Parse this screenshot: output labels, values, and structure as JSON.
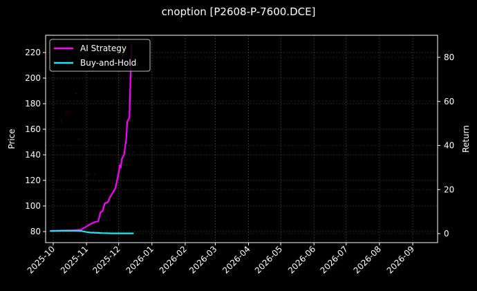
{
  "chart_data": {
    "type": "line",
    "title": "cnoption [P2608-P-7600.DCE]",
    "xlabel": "",
    "ylabel": "Price",
    "ylabel_right": "Return",
    "x_tick_labels": [
      "2025-10",
      "2025-11",
      "2025-12",
      "2026-01",
      "2026-02",
      "2026-03",
      "2026-04",
      "2026-05",
      "2026-06",
      "2026-07",
      "2026-08",
      "2026-09"
    ],
    "y_ticks_left": [
      80,
      100,
      120,
      140,
      160,
      180,
      200,
      220
    ],
    "y_ticks_right": [
      0,
      20,
      40,
      60,
      80
    ],
    "ylim_left": [
      74,
      234
    ],
    "ylim_right": [
      -3.5,
      90
    ],
    "grid": true,
    "legend_position": "upper left",
    "legend": [
      "AI Strategy",
      "Buy-and-Hold"
    ],
    "series": [
      {
        "name": "AI Strategy",
        "color": "#ff00ff",
        "axis": "left",
        "points": [
          [
            "2025-09-28",
            80.6
          ],
          [
            "2025-10-10",
            80.8
          ],
          [
            "2025-10-20",
            81.0
          ],
          [
            "2025-10-27",
            81.5
          ],
          [
            "2025-11-01",
            84
          ],
          [
            "2025-11-05",
            86
          ],
          [
            "2025-11-09",
            87.5
          ],
          [
            "2025-11-12",
            88
          ],
          [
            "2025-11-14",
            95
          ],
          [
            "2025-11-16",
            96
          ],
          [
            "2025-11-18",
            102
          ],
          [
            "2025-11-21",
            103
          ],
          [
            "2025-11-23",
            107
          ],
          [
            "2025-11-26",
            111
          ],
          [
            "2025-11-28",
            114
          ],
          [
            "2025-12-01",
            126
          ],
          [
            "2025-12-02",
            132
          ],
          [
            "2025-12-03",
            130
          ],
          [
            "2025-12-04",
            137
          ],
          [
            "2025-12-06",
            140
          ],
          [
            "2025-12-08",
            152
          ],
          [
            "2025-12-09",
            166
          ],
          [
            "2025-12-11",
            169
          ],
          [
            "2025-12-12",
            200
          ],
          [
            "2025-12-13",
            226
          ]
        ]
      },
      {
        "name": "Buy-and-Hold",
        "color": "#22e6ee",
        "axis": "left",
        "points": [
          [
            "2025-09-28",
            80.4
          ],
          [
            "2025-10-10",
            80.6
          ],
          [
            "2025-10-20",
            80.6
          ],
          [
            "2025-10-27",
            80.5
          ],
          [
            "2025-11-01",
            79.6
          ],
          [
            "2025-11-05",
            79.2
          ],
          [
            "2025-11-12",
            79.0
          ],
          [
            "2025-11-15",
            78.8
          ],
          [
            "2025-11-25",
            78.6
          ],
          [
            "2025-12-05",
            78.6
          ],
          [
            "2025-12-15",
            78.6
          ]
        ]
      }
    ],
    "scatter_faint": {
      "name": "trade markers",
      "color": "#5a0000",
      "points": [
        [
          "2025-10-01",
          166
        ],
        [
          "2025-10-09",
          166
        ],
        [
          "2025-10-13",
          173
        ],
        [
          "2025-10-15",
          174
        ],
        [
          "2025-10-22",
          188
        ],
        [
          "2025-10-25",
          152
        ],
        [
          "2025-11-01",
          124
        ],
        [
          "2025-11-03",
          125
        ],
        [
          "2025-11-09",
          125
        ],
        [
          "2025-11-13",
          119
        ],
        [
          "2025-11-17",
          113
        ],
        [
          "2025-11-21",
          96
        ],
        [
          "2025-12-05",
          155
        ],
        [
          "2025-12-10",
          147
        ],
        [
          "2025-12-15",
          142
        ]
      ]
    }
  },
  "legend": {
    "items": [
      {
        "label": "AI Strategy",
        "color": "#ff00ff"
      },
      {
        "label": "Buy-and-Hold",
        "color": "#22e6ee"
      }
    ]
  },
  "axes": {
    "left_label": "Price",
    "right_label": "Return"
  },
  "title": "cnoption [P2608-P-7600.DCE]"
}
